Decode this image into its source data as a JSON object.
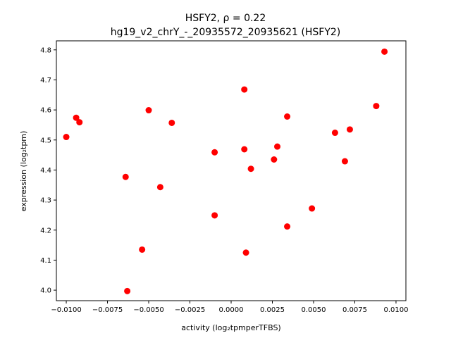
{
  "chart_data": {
    "type": "scatter",
    "title_line1": "HSFY2, ρ = 0.22",
    "title_line2": "hg19_v2_chrY_-_20935572_20935621 (HSFY2)",
    "xlabel": "activity (log₂tpmperTFBS)",
    "ylabel": "expression (log₂tpm)",
    "xlim": [
      -0.0106,
      0.0106
    ],
    "ylim": [
      3.965,
      4.83
    ],
    "x_ticks": [
      -0.01,
      -0.0075,
      -0.005,
      -0.0025,
      0.0,
      0.0025,
      0.005,
      0.0075,
      0.01
    ],
    "x_tick_labels": [
      "−0.0100",
      "−0.0075",
      "−0.0050",
      "−0.0025",
      "0.0000",
      "0.0025",
      "0.0050",
      "0.0075",
      "0.0100"
    ],
    "y_ticks": [
      4.0,
      4.1,
      4.2,
      4.3,
      4.4,
      4.5,
      4.6,
      4.7,
      4.8
    ],
    "y_tick_labels": [
      "4.0",
      "4.1",
      "4.2",
      "4.3",
      "4.4",
      "4.5",
      "4.6",
      "4.7",
      "4.8"
    ],
    "marker_color": "#ff0000",
    "grid": false,
    "points": [
      {
        "x": -0.01,
        "y": 4.51
      },
      {
        "x": -0.0094,
        "y": 4.574
      },
      {
        "x": -0.0092,
        "y": 4.559
      },
      {
        "x": -0.0064,
        "y": 4.377
      },
      {
        "x": -0.0063,
        "y": 3.997
      },
      {
        "x": -0.0054,
        "y": 4.135
      },
      {
        "x": -0.005,
        "y": 4.599
      },
      {
        "x": -0.0043,
        "y": 4.343
      },
      {
        "x": -0.0036,
        "y": 4.557
      },
      {
        "x": -0.001,
        "y": 4.459
      },
      {
        "x": -0.001,
        "y": 4.249
      },
      {
        "x": 0.0008,
        "y": 4.668
      },
      {
        "x": 0.0008,
        "y": 4.469
      },
      {
        "x": 0.0009,
        "y": 4.125
      },
      {
        "x": 0.0012,
        "y": 4.404
      },
      {
        "x": 0.0026,
        "y": 4.435
      },
      {
        "x": 0.0028,
        "y": 4.478
      },
      {
        "x": 0.0034,
        "y": 4.578
      },
      {
        "x": 0.0034,
        "y": 4.212
      },
      {
        "x": 0.0049,
        "y": 4.272
      },
      {
        "x": 0.0063,
        "y": 4.524
      },
      {
        "x": 0.0069,
        "y": 4.429
      },
      {
        "x": 0.0072,
        "y": 4.535
      },
      {
        "x": 0.0088,
        "y": 4.613
      },
      {
        "x": 0.0093,
        "y": 4.794
      }
    ]
  }
}
